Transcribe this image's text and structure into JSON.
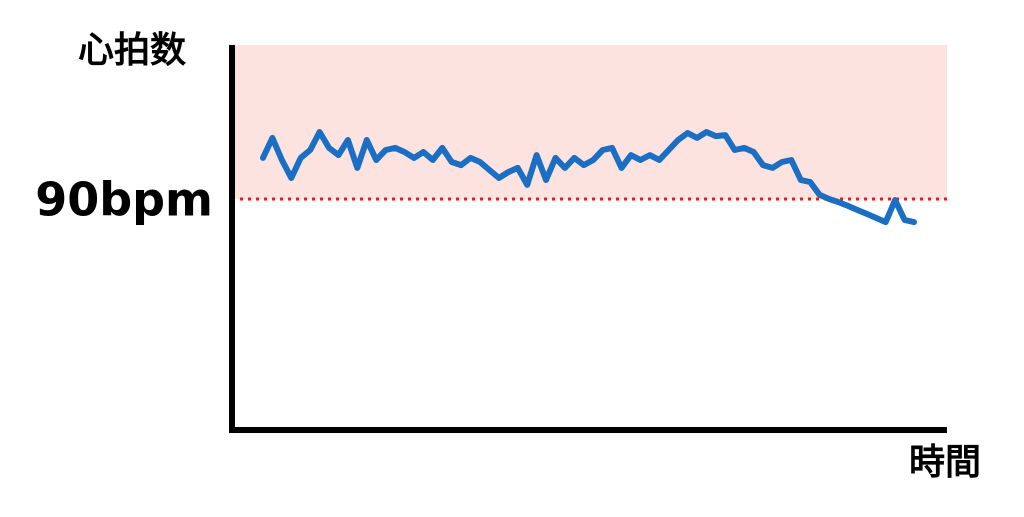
{
  "chart_data": {
    "type": "line",
    "ylabel": "心拍数",
    "xlabel": "時間",
    "ylim": [
      0,
      150
    ],
    "yticks": [
      {
        "value": 90,
        "label": "90bpm"
      }
    ],
    "threshold_fill": "#fde3df",
    "threshold_line_color": "#e02020",
    "series": [
      {
        "color": "#1a6fc4",
        "values": [
          106.0,
          113.8,
          105.2,
          98.2,
          106.0,
          109.1,
          116.1,
          109.9,
          107.1,
          113.0,
          102.1,
          113.0,
          105.2,
          109.1,
          109.9,
          108.3,
          106.0,
          108.3,
          105.2,
          109.9,
          104.4,
          103.2,
          106.0,
          104.4,
          101.3,
          98.2,
          100.5,
          102.1,
          95.5,
          107.1,
          97.4,
          106.0,
          102.1,
          106.0,
          103.2,
          105.2,
          109.1,
          109.9,
          102.1,
          107.1,
          105.2,
          107.1,
          105.2,
          109.1,
          113.0,
          115.7,
          113.8,
          116.1,
          114.5,
          114.9,
          109.1,
          109.9,
          108.3,
          103.2,
          102.1,
          104.4,
          105.2,
          97.4,
          96.6,
          91.6,
          90.0,
          88.8,
          87.3,
          85.7,
          84.2,
          82.6,
          81.0,
          89.6,
          81.8,
          81.0
        ]
      }
    ]
  }
}
